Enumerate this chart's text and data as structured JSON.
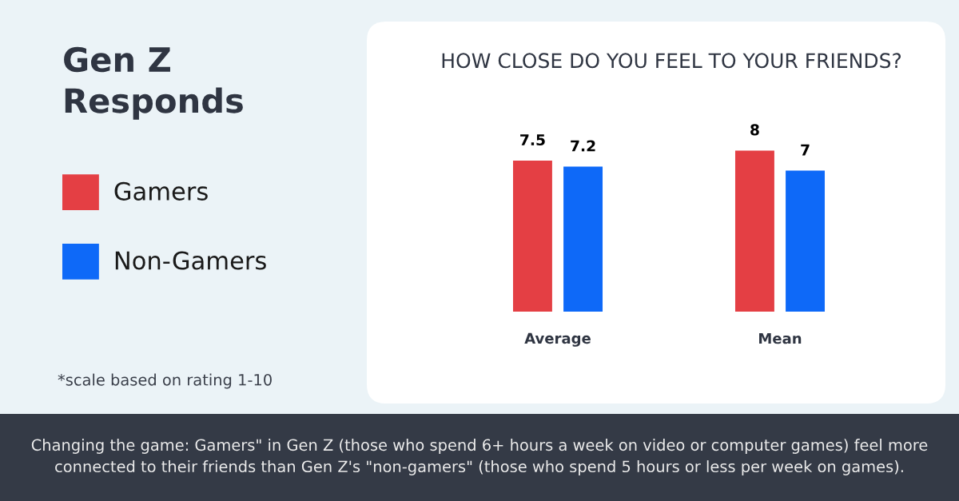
{
  "chart_data": {
    "type": "bar",
    "title": "Gen Z Responds",
    "subtitle": "HOW CLOSE DO YOU FEEL TO YOUR FRIENDS?",
    "categories": [
      "Average",
      "Mean"
    ],
    "series": [
      {
        "name": "Gamers",
        "color": "#e43f44",
        "values": [
          7.5,
          8
        ]
      },
      {
        "name": "Non-Gamers",
        "color": "#0e69f8",
        "values": [
          7.2,
          7
        ]
      }
    ],
    "data_labels": true,
    "legend": "left",
    "tick_labels": "x",
    "annotations": [
      "*scale based on rating 1-10",
      "Changing the game: Gamers\" in Gen Z (those who spend 6+ hours a week on video or computer games) feel more connected to their friends than Gen Z's \"non-gamers\" (those who spend 5 hours or less per week on games)."
    ]
  }
}
